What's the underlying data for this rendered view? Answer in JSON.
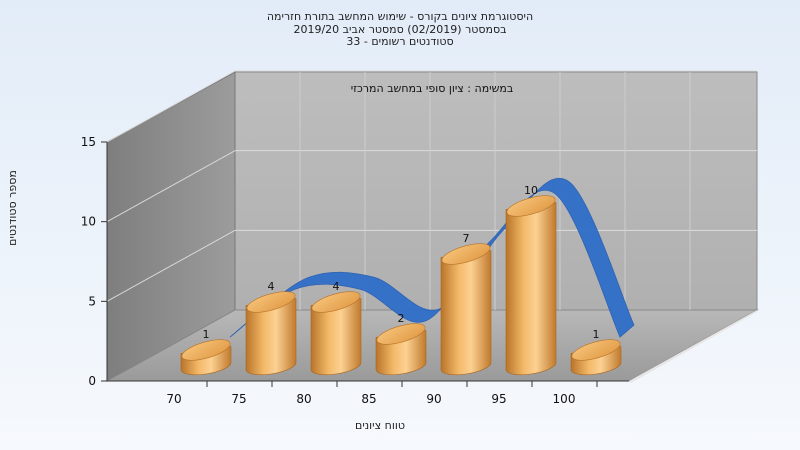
{
  "chart_data": {
    "type": "bar",
    "title": [
      "היסטוגרמת ציונים בקורס - שימוש המחשב בתורת חזרימה",
      "בסמסטר  (02/2019)  סמסטר אביב 2019/20",
      "סטודנטים רשומים - 33"
    ],
    "inner_title": "במשימה : ציון סופי במחשב המרכזי",
    "xlabel": "טווח ציונים",
    "ylabel": "מספר סטודנטים",
    "categories": [
      "70",
      "75",
      "80",
      "85",
      "90",
      "95",
      "100"
    ],
    "values": [
      1,
      4,
      4,
      2,
      7,
      10,
      1
    ],
    "data_labels": [
      "1",
      "4",
      "4",
      "2",
      "7",
      "10",
      "1"
    ],
    "yticks": [
      "0",
      "5",
      "10",
      "15"
    ],
    "ylim": [
      0,
      15
    ],
    "grid": true,
    "bar_color": "#e8a54a",
    "curve_color": "#2f6ec8"
  }
}
